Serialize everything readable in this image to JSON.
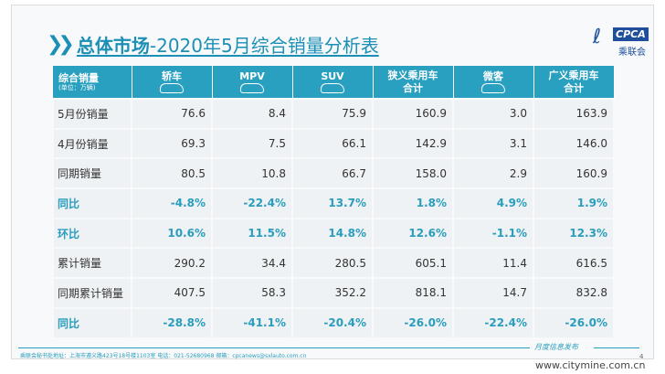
{
  "title": {
    "main": "总体市场",
    "sub": "-2020年5月综合销量分析表"
  },
  "logo": {
    "text": "CPCA",
    "cn": "乘联会"
  },
  "table": {
    "header": {
      "label": "综合销量",
      "unit": "(单位：万辆)",
      "columns": [
        {
          "line1": "轿车",
          "icon": "sedan-icon"
        },
        {
          "line1": "MPV",
          "icon": "mpv-icon"
        },
        {
          "line1": "SUV",
          "icon": "suv-icon"
        },
        {
          "line1": "狭义乘用车",
          "line2": "合计"
        },
        {
          "line1": "微客",
          "icon": "minivan-icon"
        },
        {
          "line1": "广义乘用车",
          "line2": "合计"
        }
      ]
    },
    "rows": [
      {
        "label": "5月份销量",
        "values": [
          "76.6",
          "8.4",
          "75.9",
          "160.9",
          "3.0",
          "163.9"
        ]
      },
      {
        "label": "4月份销量",
        "values": [
          "69.3",
          "7.5",
          "66.1",
          "142.9",
          "3.1",
          "146.0"
        ]
      },
      {
        "label": "同期销量",
        "values": [
          "80.5",
          "10.8",
          "66.7",
          "158.0",
          "2.9",
          "160.9"
        ]
      },
      {
        "label": "同比",
        "pct": true,
        "values": [
          "-4.8%",
          "-22.4%",
          "13.7%",
          "1.8%",
          "4.9%",
          "1.9%"
        ]
      },
      {
        "label": "环比",
        "pct": true,
        "values": [
          "10.6%",
          "11.5%",
          "14.8%",
          "12.6%",
          "-1.1%",
          "12.3%"
        ]
      },
      {
        "label": "累计销量",
        "values": [
          "290.2",
          "34.4",
          "280.5",
          "605.1",
          "11.4",
          "616.5"
        ]
      },
      {
        "label": "同期累计销量",
        "values": [
          "407.5",
          "58.3",
          "352.2",
          "818.1",
          "14.7",
          "832.8"
        ]
      },
      {
        "label": "同比",
        "pct": true,
        "values": [
          "-28.8%",
          "-41.1%",
          "-20.4%",
          "-26.0%",
          "-22.4%",
          "-26.0%"
        ]
      }
    ]
  },
  "footer": {
    "address": "乘联会秘书处地址：上海市遵义路423号18号楼1103室  电话：021-52680968  邮箱：cpcanews@sxlauto.com.cn",
    "right": "月度信息发布",
    "page": "4"
  },
  "watermark": "www.citymine.com.cn"
}
